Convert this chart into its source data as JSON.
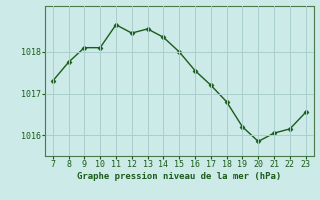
{
  "hours": [
    7,
    8,
    9,
    10,
    11,
    12,
    13,
    14,
    15,
    16,
    17,
    18,
    19,
    20,
    21,
    22,
    23
  ],
  "pressure": [
    1017.3,
    1017.75,
    1018.1,
    1018.1,
    1018.65,
    1018.45,
    1018.55,
    1018.35,
    1018.0,
    1017.55,
    1017.2,
    1016.8,
    1016.2,
    1015.85,
    1016.05,
    1016.15,
    1016.55
  ],
  "line_color": "#1a5c1a",
  "marker": "D",
  "marker_size": 2.5,
  "line_width": 1.0,
  "bg_color": "#cceae7",
  "grid_color": "#aacfcc",
  "xlabel": "Graphe pression niveau de la mer (hPa)",
  "xlabel_color": "#1a5c1a",
  "ylabel_color": "#1a5c1a",
  "tick_color": "#1a5c1a",
  "spine_color": "#4a7a4a",
  "ylim": [
    1015.5,
    1019.1
  ],
  "yticks": [
    1016,
    1017,
    1018
  ],
  "xlim": [
    6.5,
    23.5
  ],
  "xticks": [
    7,
    8,
    9,
    10,
    11,
    12,
    13,
    14,
    15,
    16,
    17,
    18,
    19,
    20,
    21,
    22,
    23
  ]
}
